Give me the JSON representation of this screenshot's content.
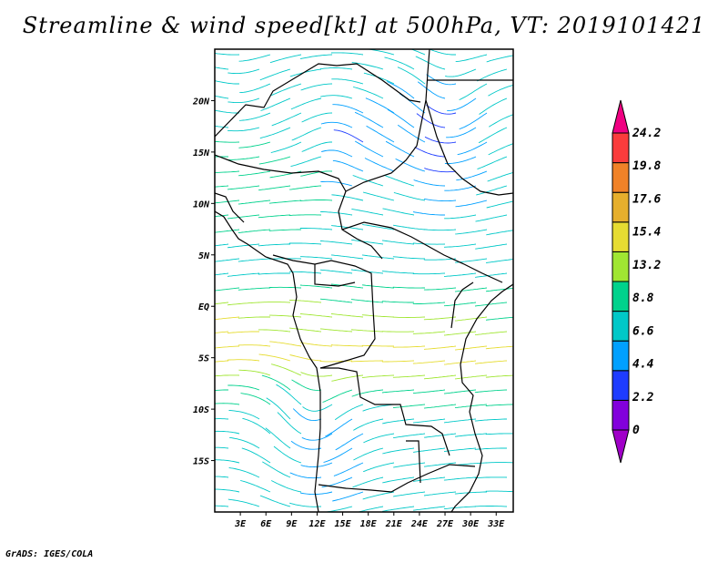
{
  "title": "Streamline & wind speed[kt] at 500hPa, VT: 2019101421",
  "footer": "GrADS: IGES/COLA",
  "map": {
    "lon_range": [
      0,
      35
    ],
    "lat_range": [
      -20,
      25
    ],
    "lon_ticks": [
      {
        "value": 3,
        "label": "3E"
      },
      {
        "value": 6,
        "label": "6E"
      },
      {
        "value": 9,
        "label": "9E"
      },
      {
        "value": 12,
        "label": "12E"
      },
      {
        "value": 15,
        "label": "15E"
      },
      {
        "value": 18,
        "label": "18E"
      },
      {
        "value": 21,
        "label": "21E"
      },
      {
        "value": 24,
        "label": "24E"
      },
      {
        "value": 27,
        "label": "27E"
      },
      {
        "value": 30,
        "label": "30E"
      },
      {
        "value": 33,
        "label": "33E"
      }
    ],
    "lat_ticks": [
      {
        "value": 20,
        "label": "20N"
      },
      {
        "value": 15,
        "label": "15N"
      },
      {
        "value": 10,
        "label": "10N"
      },
      {
        "value": 5,
        "label": "5N"
      },
      {
        "value": 0,
        "label": "EQ"
      },
      {
        "value": -5,
        "label": "5S"
      },
      {
        "value": -10,
        "label": "10S"
      },
      {
        "value": -15,
        "label": "15S"
      }
    ]
  },
  "colorbar": {
    "levels": [
      "0",
      "2.2",
      "4.4",
      "6.6",
      "8.8",
      "13.2",
      "15.4",
      "17.6",
      "19.8",
      "24.2"
    ],
    "colors": [
      "#a000c8",
      "#8200dc",
      "#1e3cff",
      "#00a0ff",
      "#00c8c8",
      "#00d28c",
      "#a0e632",
      "#e6dc32",
      "#e6af2d",
      "#f08228",
      "#fa3c3c",
      "#f00082"
    ]
  }
}
